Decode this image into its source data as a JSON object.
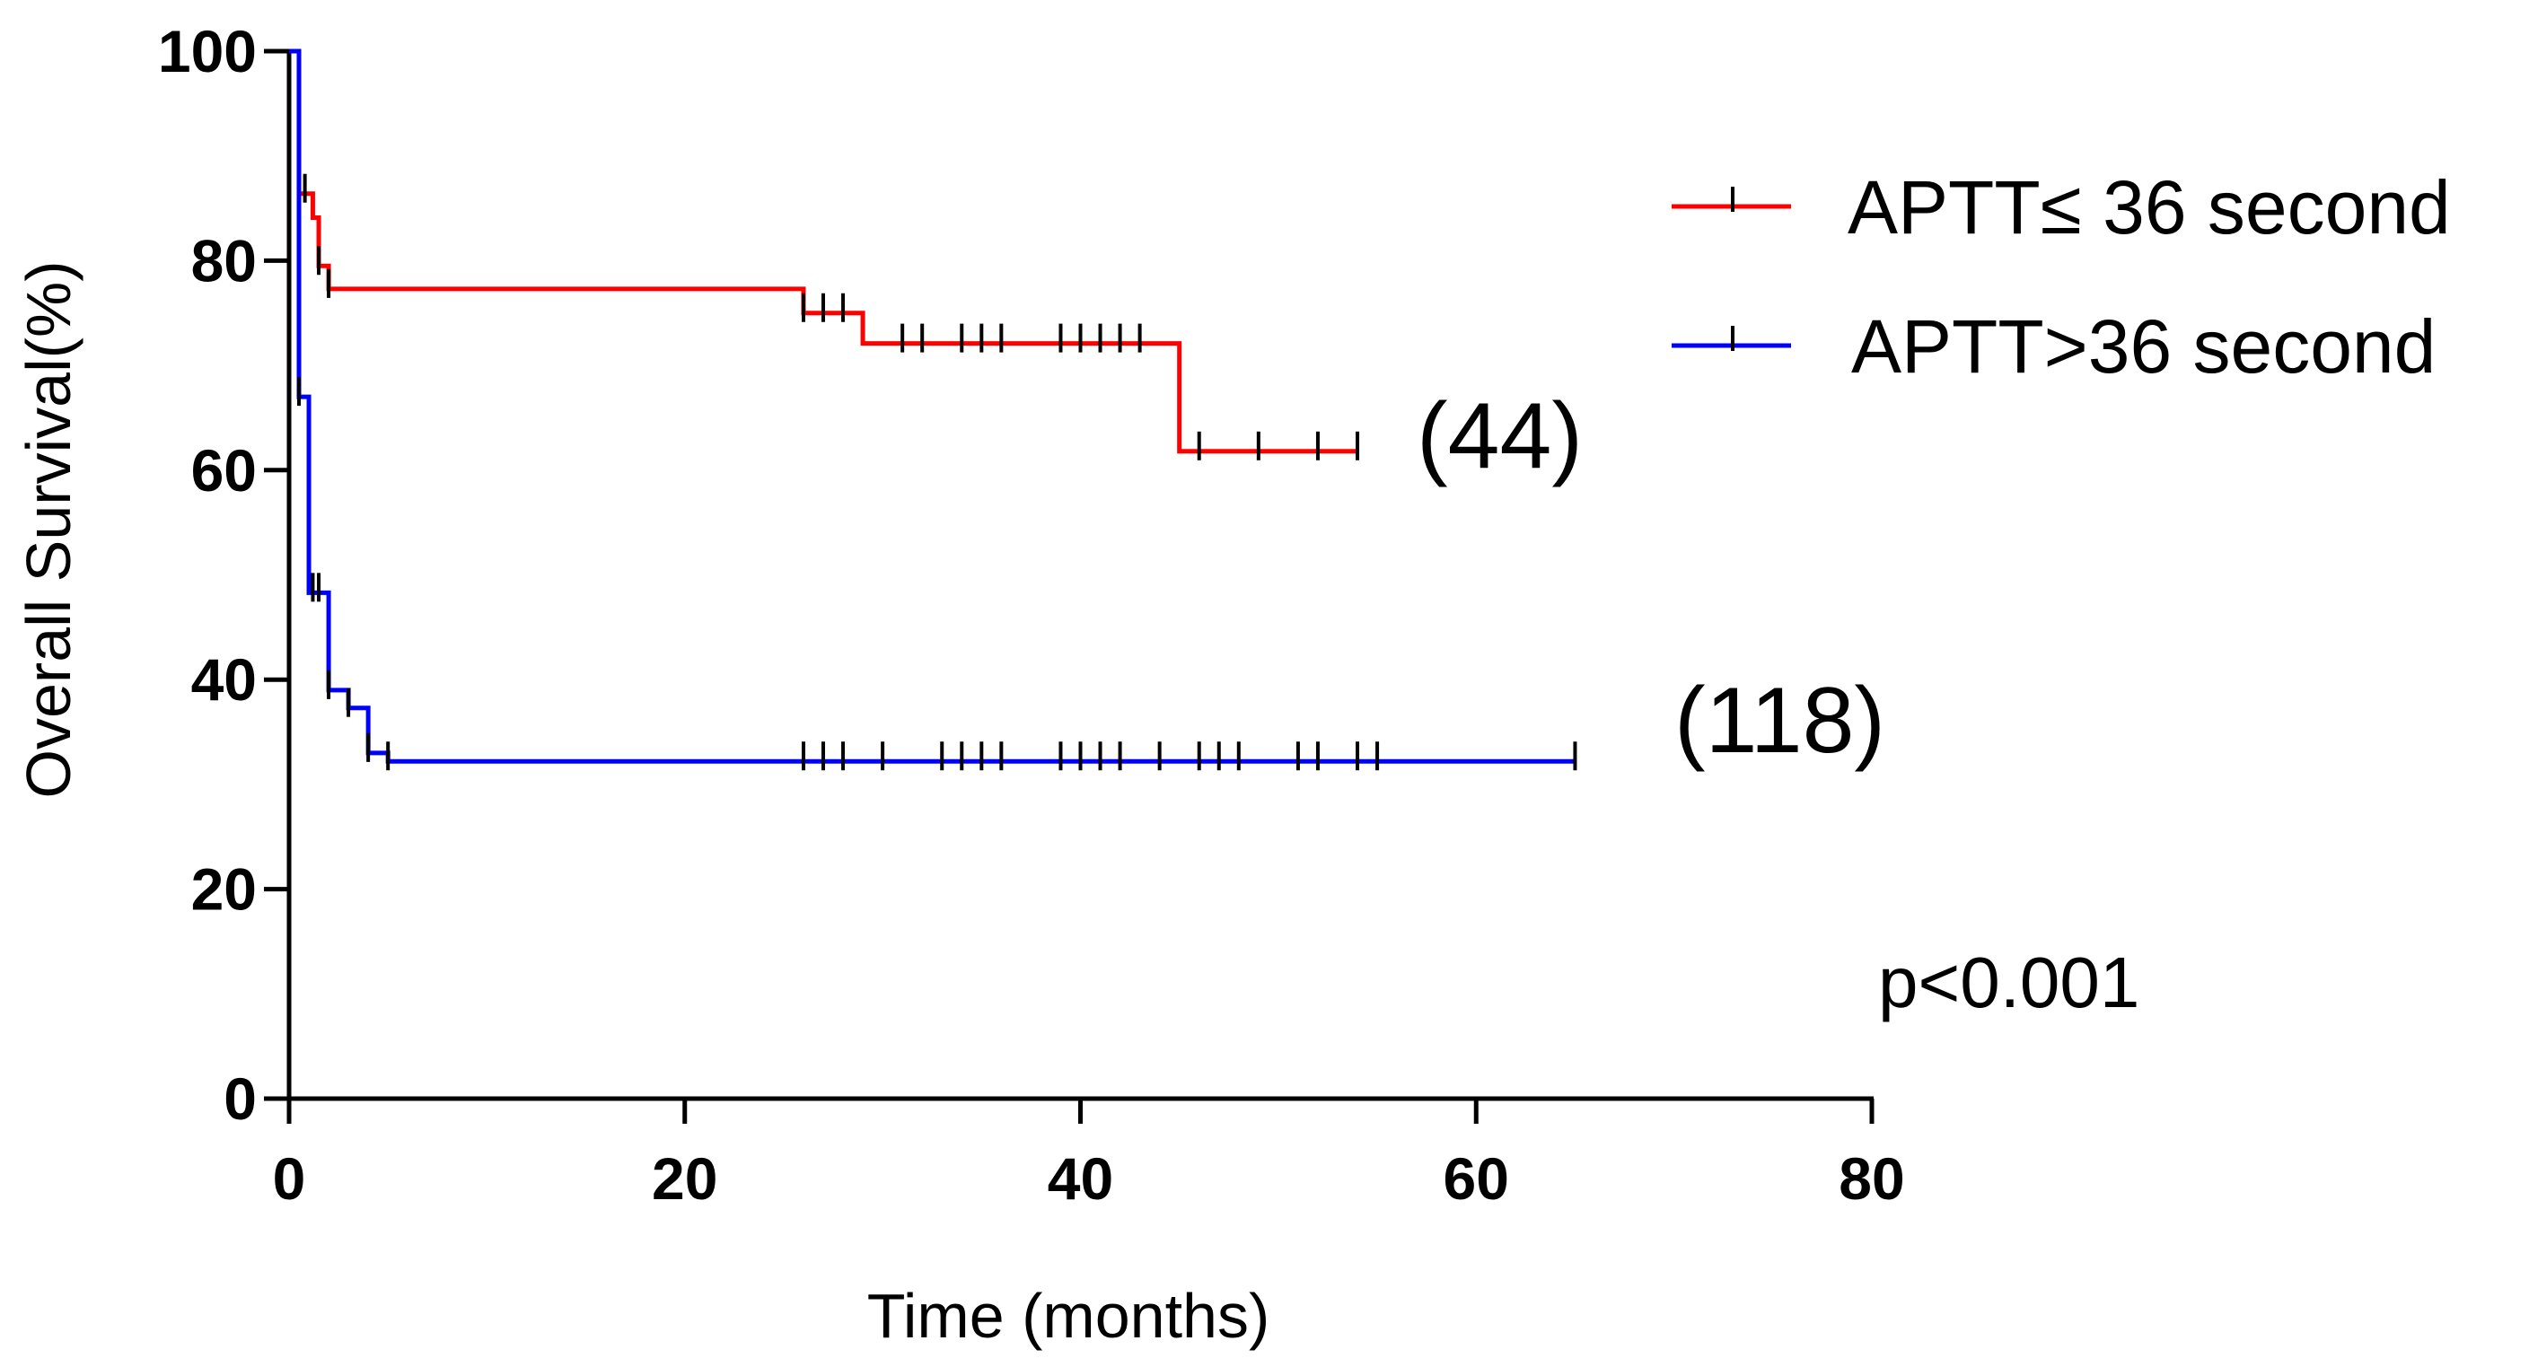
{
  "chart_data": {
    "type": "line",
    "subtype": "kaplan-meier",
    "xlabel": "Time (months)",
    "ylabel": "Overall Survival(%)",
    "xlim": [
      0,
      80
    ],
    "ylim": [
      0,
      100
    ],
    "xticks": [
      0,
      20,
      40,
      60,
      80
    ],
    "yticks": [
      0,
      20,
      40,
      60,
      80,
      100
    ],
    "legend_position": "top-right",
    "series": [
      {
        "name": "APTT≤ 36 second",
        "color": "#ff0000",
        "steps": [
          [
            0,
            100
          ],
          [
            0.5,
            86.4
          ],
          [
            1.2,
            84.1
          ],
          [
            1.5,
            79.5
          ],
          [
            2,
            77.3
          ],
          [
            26,
            75
          ],
          [
            29,
            72.1
          ],
          [
            45,
            61.8
          ],
          [
            54,
            61.8
          ]
        ],
        "censor_times": [
          0.8,
          1.5,
          2,
          26,
          27,
          28,
          31,
          32,
          34,
          35,
          36,
          39,
          40,
          41,
          42,
          43,
          46,
          49,
          52,
          54
        ],
        "annotation": "(44)",
        "annotation_y": 61.8
      },
      {
        "name": "APTT>36 second",
        "color": "#0000ff",
        "steps": [
          [
            0,
            100
          ],
          [
            0.5,
            67
          ],
          [
            1,
            48.3
          ],
          [
            2,
            47.5
          ],
          [
            2,
            39
          ],
          [
            3,
            37.3
          ],
          [
            4,
            33
          ],
          [
            5,
            32.2
          ],
          [
            65,
            32.2
          ]
        ],
        "censor_times": [
          0.5,
          1.2,
          1.5,
          2,
          3,
          4,
          5,
          26,
          27,
          28,
          30,
          33,
          34,
          35,
          36,
          39,
          40,
          41,
          42,
          44,
          46,
          47,
          48,
          51,
          52,
          54,
          55,
          65
        ],
        "annotation": "(118)",
        "annotation_y": 32.2
      }
    ],
    "p_value": "p<0.001"
  }
}
